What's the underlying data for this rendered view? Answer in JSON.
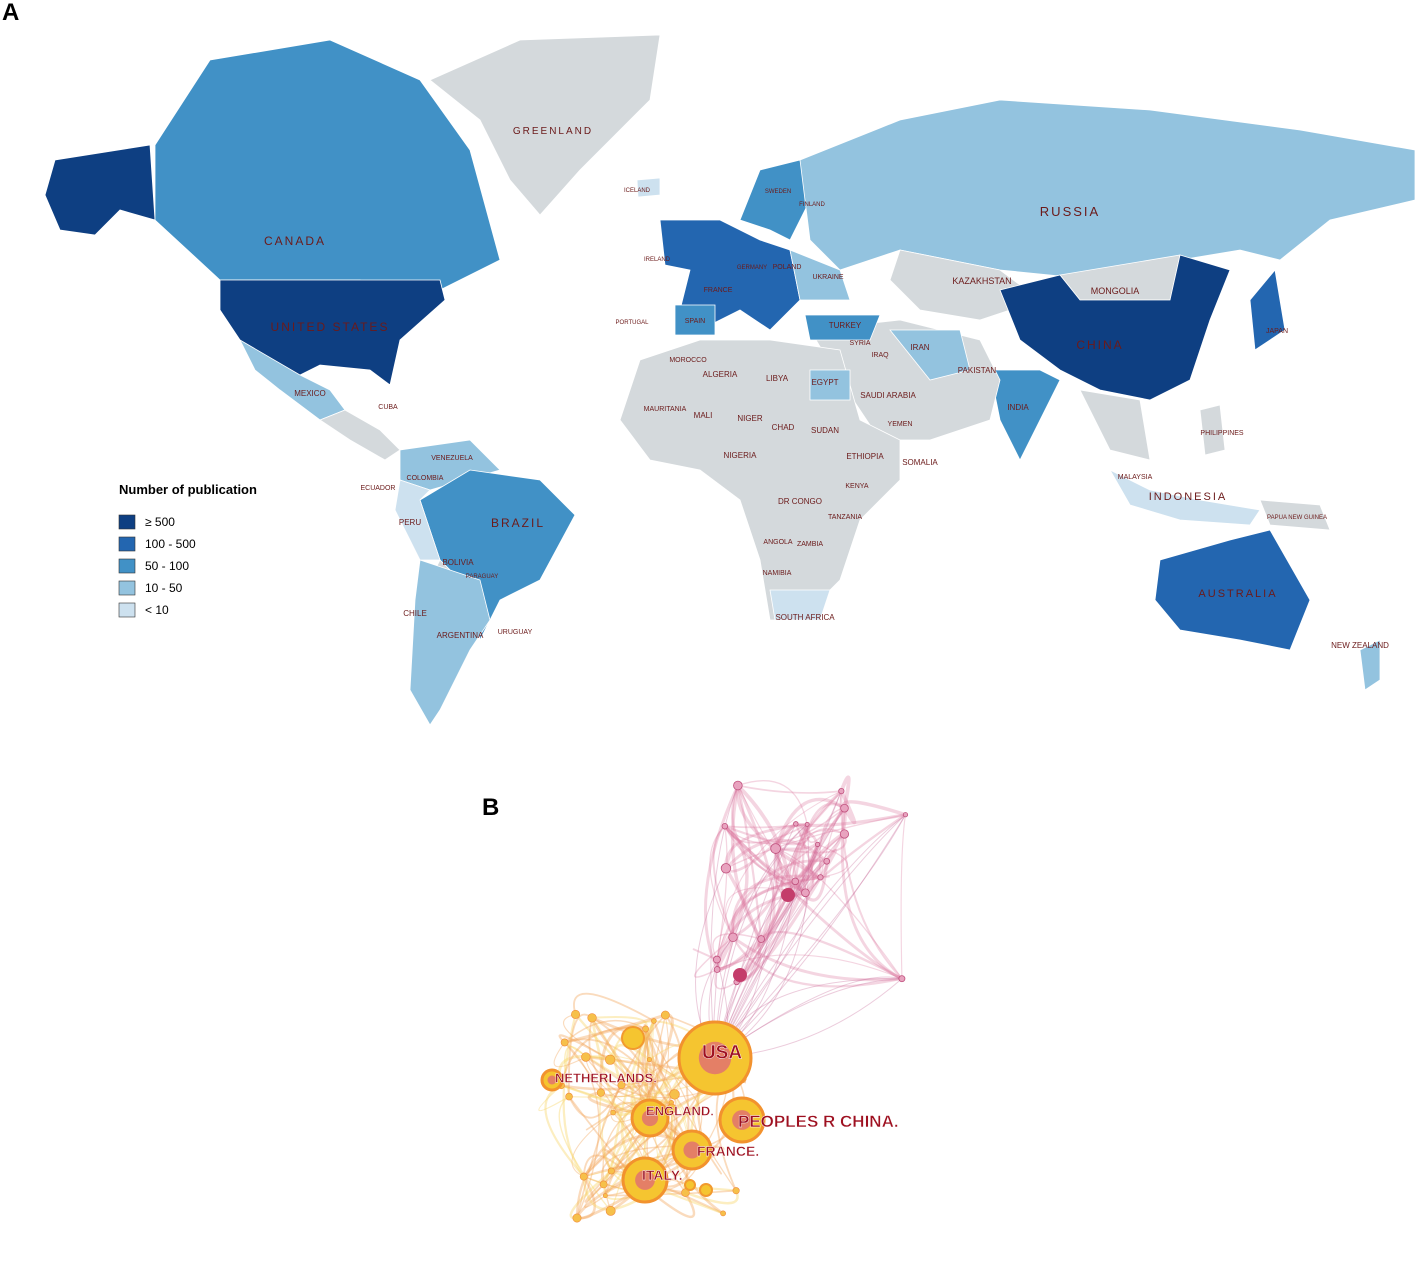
{
  "panel_a": {
    "label": "A",
    "legend": {
      "title": "Number of publication",
      "items": [
        {
          "label": "≥ 500",
          "color": "#0e3f82"
        },
        {
          "label": "100 - 500",
          "color": "#2366b0"
        },
        {
          "label": "50 - 100",
          "color": "#4191c6"
        },
        {
          "label": "10 - 50",
          "color": "#93c3df"
        },
        {
          "label": "< 10",
          "color": "#cde1ef"
        }
      ]
    },
    "countries": [
      "GREENLAND",
      "CANADA",
      "UNITED STATES",
      "MEXICO",
      "BRAZIL",
      "COLOMBIA",
      "VENEZUELA",
      "PERU",
      "BOLIVIA",
      "ARGENTINA",
      "CHILE",
      "URUGUAY",
      "PARAGUAY",
      "ECUADOR",
      "CUBA",
      "RUSSIA",
      "KAZAKHSTAN",
      "MONGOLIA",
      "CHINA",
      "INDIA",
      "IRAN",
      "IRAQ",
      "TURKEY",
      "SYRIA",
      "SAUDI ARABIA",
      "EGYPT",
      "LIBYA",
      "ALGERIA",
      "MOROCCO",
      "MALI",
      "NIGER",
      "CHAD",
      "SUDAN",
      "ETHIOPIA",
      "NIGERIA",
      "SOMALIA",
      "KENYA",
      "TANZANIA",
      "DR CONGO",
      "ANGOLA",
      "ZAMBIA",
      "NAMIBIA",
      "SOUTH AFRICA",
      "PAKISTAN",
      "JAPAN",
      "PHILIPPINES",
      "INDONESIA",
      "MALAYSIA",
      "AUSTRALIA",
      "NEW ZEALAND",
      "PAPUA NEW GUINEA",
      "UKRAINE",
      "FINLAND",
      "SWEDEN",
      "POLAND",
      "SPAIN",
      "FRANCE",
      "GERMANY",
      "IRELAND",
      "PORTUGAL",
      "ICELAND",
      "YEMEN",
      "MAURITANIA"
    ]
  },
  "panel_b": {
    "label": "B",
    "nodes": [
      "USA",
      "PEOPLES R CHINA.",
      "ENGLAND.",
      "NETHERLANDS.",
      "FRANCE.",
      "ITALY."
    ]
  }
}
